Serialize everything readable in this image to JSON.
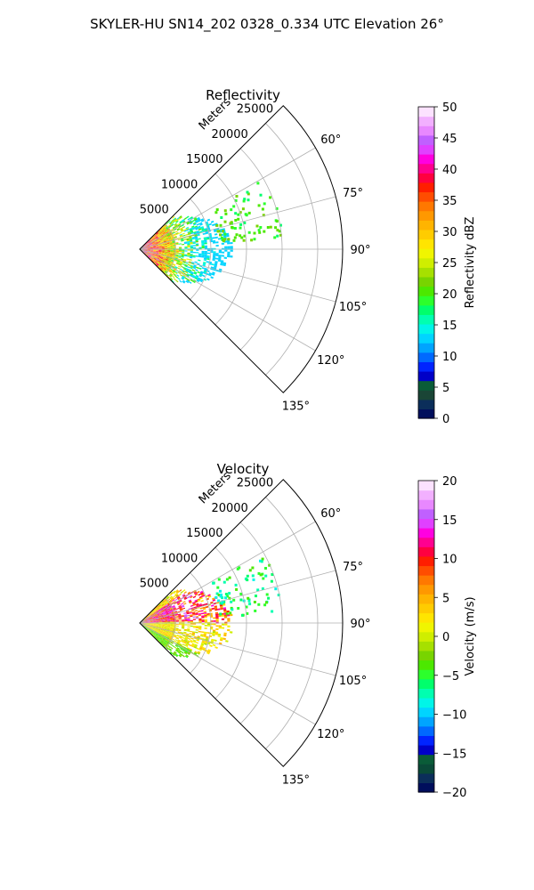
{
  "suptitle": "SKYLER-HU  SN14_202  0328_0.334 UTC Elevation 26°",
  "chart_data": [
    {
      "type": "heatmap",
      "projection": "polar-sector",
      "title": "Reflectivity",
      "radial_label": "Meters",
      "theta_range_deg": [
        45,
        135
      ],
      "r_max": 28500,
      "r_ticks": [
        5000,
        10000,
        15000,
        20000,
        25000
      ],
      "r_tick_labels": [
        "5000",
        "10000",
        "15000",
        "20000",
        "25000"
      ],
      "theta_ticks_deg": [
        60,
        75,
        90,
        105,
        120,
        135
      ],
      "theta_tick_labels": [
        "60°",
        "75°",
        "90°",
        "105°",
        "120°",
        "135°"
      ],
      "grid": true,
      "colorbar": {
        "label": "Reflectivity dBZ",
        "range": [
          0,
          50
        ],
        "ticks": [
          0,
          5,
          10,
          15,
          20,
          25,
          30,
          35,
          40,
          45,
          50
        ],
        "tick_labels": [
          "0",
          "5",
          "10",
          "15",
          "20",
          "25",
          "30",
          "35",
          "40",
          "45",
          "50"
        ],
        "colors": [
          "#000e5c",
          "#0b2e5a",
          "#1a4536",
          "#0a5c38",
          "#0000c8",
          "#0024ff",
          "#0069ff",
          "#00a4ff",
          "#00d4ff",
          "#00f5e8",
          "#00ffb0",
          "#00ff6c",
          "#2cff2c",
          "#4ce800",
          "#78d400",
          "#a6e000",
          "#cfee00",
          "#f0f500",
          "#ffe500",
          "#ffcc00",
          "#ffb400",
          "#ff9800",
          "#ff7800",
          "#ff4d00",
          "#ff1e00",
          "#ff0040",
          "#ff0090",
          "#ff00e0",
          "#e040ff",
          "#c060ff",
          "#e888ff",
          "#f2b0ff",
          "#fce2ff"
        ]
      }
    },
    {
      "type": "heatmap",
      "projection": "polar-sector",
      "title": "Velocity",
      "radial_label": "Meters",
      "theta_range_deg": [
        45,
        135
      ],
      "r_max": 28500,
      "r_ticks": [
        5000,
        10000,
        15000,
        20000,
        25000
      ],
      "r_tick_labels": [
        "5000",
        "10000",
        "15000",
        "20000",
        "25000"
      ],
      "theta_ticks_deg": [
        60,
        75,
        90,
        105,
        120,
        135
      ],
      "theta_tick_labels": [
        "60°",
        "75°",
        "90°",
        "105°",
        "120°",
        "135°"
      ],
      "grid": true,
      "colorbar": {
        "label": "Velocity (m/s)",
        "range": [
          -20,
          20
        ],
        "ticks": [
          -20,
          -15,
          -10,
          -5,
          0,
          5,
          10,
          15,
          20
        ],
        "tick_labels": [
          "−20",
          "−15",
          "−10",
          "−5",
          "0",
          "5",
          "10",
          "15",
          "20"
        ],
        "colors": [
          "#000e5c",
          "#0b2e5a",
          "#0a4a38",
          "#0a5c38",
          "#0000c8",
          "#0024ff",
          "#0069ff",
          "#00a4ff",
          "#00d4ff",
          "#00f5e8",
          "#00ffb0",
          "#00ff6c",
          "#2cff2c",
          "#4ce800",
          "#78d400",
          "#a6e000",
          "#cfee00",
          "#f0f500",
          "#ffe500",
          "#ffcc00",
          "#ffb400",
          "#ff9800",
          "#ff7800",
          "#ff4d00",
          "#ff1e00",
          "#ff0040",
          "#ff0090",
          "#ff00e0",
          "#e040ff",
          "#c060ff",
          "#e888ff",
          "#f2b0ff",
          "#fce2ff"
        ]
      }
    }
  ]
}
